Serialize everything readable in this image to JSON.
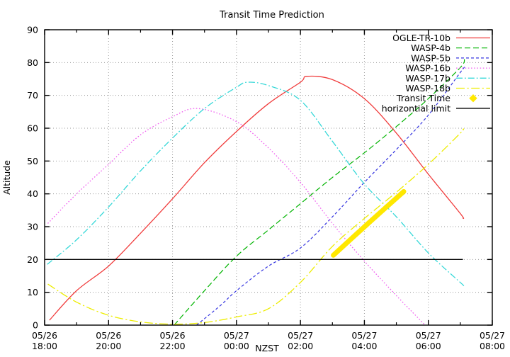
{
  "window": {
    "background": "#ffffff"
  },
  "chart_data": {
    "type": "line",
    "title": "Transit Time Prediction",
    "xlabel": "NZST",
    "ylabel": "Altitude",
    "x_axis_note": "time axis from 05/26 18:00 to 05/27 08:00 NZST, hours after 18:00",
    "xlim": [
      0,
      14
    ],
    "ylim": [
      0,
      90
    ],
    "grid": true,
    "grid_color": "#9a9a9a",
    "legend_position": "top-right-inside",
    "x_ticks": [
      {
        "t": 0,
        "date": "05/26",
        "time": "18:00"
      },
      {
        "t": 2,
        "date": "05/26",
        "time": "20:00"
      },
      {
        "t": 4,
        "date": "05/26",
        "time": "22:00"
      },
      {
        "t": 6,
        "date": "05/27",
        "time": "00:00"
      },
      {
        "t": 8,
        "date": "05/27",
        "time": "02:00"
      },
      {
        "t": 10,
        "date": "05/27",
        "time": "04:00"
      },
      {
        "t": 12,
        "date": "05/27",
        "time": "06:00"
      },
      {
        "t": 14,
        "date": "05/27",
        "time": "08:00"
      }
    ],
    "x_minor_ticks": [
      1,
      3,
      5,
      7,
      9,
      11,
      13
    ],
    "y_ticks": [
      0,
      10,
      20,
      30,
      40,
      50,
      60,
      70,
      80,
      90
    ],
    "series": [
      {
        "name": "OGLE-TR-10b",
        "color": "#f03c3c",
        "style": "solid",
        "width": 1.3,
        "legend": "line",
        "points": [
          [
            0.15,
            1.5
          ],
          [
            1,
            10.5
          ],
          [
            2,
            18
          ],
          [
            3,
            28
          ],
          [
            4,
            38.5
          ],
          [
            5,
            49.5
          ],
          [
            6,
            59
          ],
          [
            7,
            67.5
          ],
          [
            8,
            74
          ],
          [
            8.2,
            75.8
          ],
          [
            9,
            74.8
          ],
          [
            10,
            69
          ],
          [
            11,
            58.5
          ],
          [
            12,
            46
          ],
          [
            13,
            34
          ],
          [
            13.08,
            32.5
          ]
        ]
      },
      {
        "name": "WASP-4b",
        "color": "#00b400",
        "style": "long-dash",
        "width": 1.2,
        "legend": "line",
        "points": [
          [
            4.05,
            0
          ],
          [
            5,
            10.5
          ],
          [
            6,
            21
          ],
          [
            7,
            29
          ],
          [
            8,
            37
          ],
          [
            9,
            45
          ],
          [
            10,
            52.5
          ],
          [
            11,
            60.5
          ],
          [
            12,
            69
          ],
          [
            13,
            78.5
          ],
          [
            13.13,
            81
          ]
        ]
      },
      {
        "name": "WASP-5b",
        "color": "#3535e0",
        "style": "short-dash",
        "width": 1.2,
        "legend": "line",
        "points": [
          [
            4.75,
            0
          ],
          [
            5.5,
            6
          ],
          [
            6,
            10.5
          ],
          [
            7,
            18
          ],
          [
            8,
            23.5
          ],
          [
            9,
            33
          ],
          [
            10,
            43.5
          ],
          [
            11,
            53.5
          ],
          [
            12,
            64
          ],
          [
            13,
            77
          ],
          [
            13.13,
            78.5
          ]
        ]
      },
      {
        "name": "WASP-16b",
        "color": "#f060f0",
        "style": "dotted",
        "width": 1.3,
        "legend": "line",
        "points": [
          [
            0.1,
            31
          ],
          [
            1,
            40
          ],
          [
            2,
            49
          ],
          [
            3,
            58
          ],
          [
            4,
            63.5
          ],
          [
            4.8,
            66
          ],
          [
            6,
            62
          ],
          [
            7,
            54
          ],
          [
            8,
            43.5
          ],
          [
            9,
            31
          ],
          [
            10,
            19.5
          ],
          [
            11,
            9
          ],
          [
            11.9,
            0
          ]
        ]
      },
      {
        "name": "WASP-17b",
        "color": "#35d8d8",
        "style": "dash-dot",
        "width": 1.3,
        "legend": "line",
        "points": [
          [
            0.08,
            18.5
          ],
          [
            1,
            26
          ],
          [
            2,
            36
          ],
          [
            3,
            47
          ],
          [
            4,
            57
          ],
          [
            5,
            66
          ],
          [
            6,
            72.5
          ],
          [
            6.35,
            74
          ],
          [
            7,
            73
          ],
          [
            8,
            68.5
          ],
          [
            9,
            56
          ],
          [
            10,
            43
          ],
          [
            11,
            33
          ],
          [
            12,
            22
          ],
          [
            13,
            13
          ],
          [
            13.08,
            12.3
          ]
        ]
      },
      {
        "name": "WASP-18b",
        "color": "#eded00",
        "style": "dash-dot-long",
        "width": 1.3,
        "legend": "line",
        "points": [
          [
            0.1,
            12.5
          ],
          [
            1,
            7
          ],
          [
            2,
            3
          ],
          [
            3,
            1
          ],
          [
            4,
            0.3
          ],
          [
            5,
            0.8
          ],
          [
            6,
            2.5
          ],
          [
            7,
            5
          ],
          [
            8,
            13
          ],
          [
            9,
            24
          ],
          [
            10,
            32.5
          ],
          [
            11,
            40.5
          ],
          [
            12,
            49
          ],
          [
            13,
            58.5
          ],
          [
            13.08,
            59.8
          ]
        ]
      },
      {
        "name": "Transit Time",
        "color": "#ffe800",
        "style": "solid",
        "width": 7,
        "legend": "point",
        "points": [
          [
            9.03,
            21.3
          ],
          [
            10.12,
            31
          ],
          [
            11.23,
            40.7
          ]
        ]
      },
      {
        "name": "horizontial limit",
        "color": "#000000",
        "style": "solid",
        "width": 1.4,
        "legend": "line",
        "points": [
          [
            0.05,
            20
          ],
          [
            13.08,
            20
          ]
        ]
      }
    ]
  }
}
